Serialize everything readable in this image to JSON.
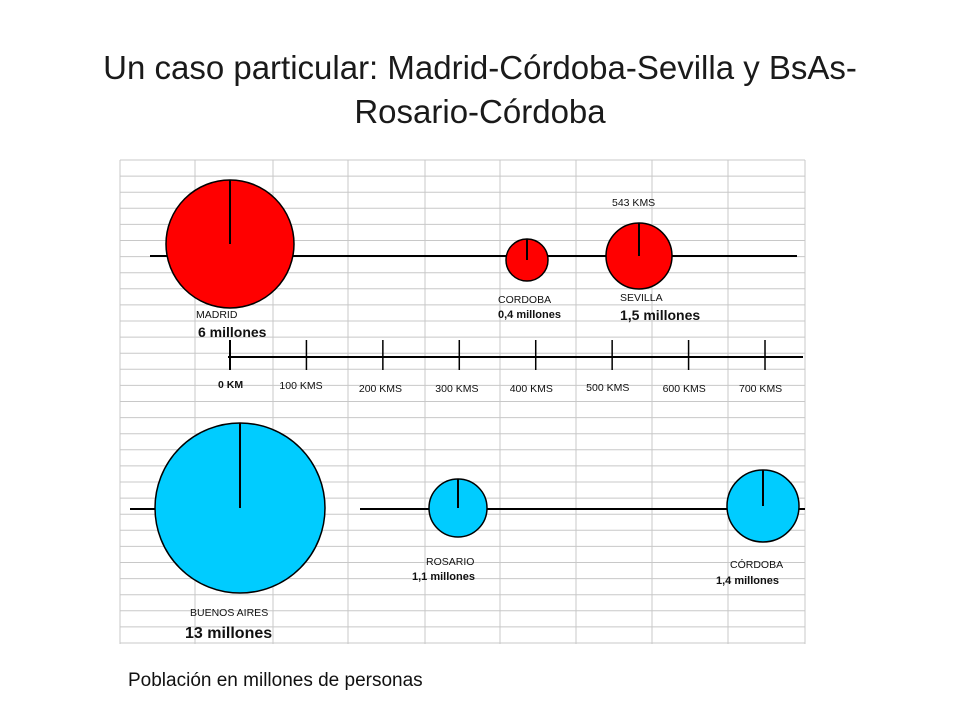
{
  "title": "Un caso particular:  Madrid-Córdoba-Sevilla  y BsAs-Rosario-Córdoba",
  "caption": "Población en millones de personas",
  "colors": {
    "spain": "#ff0000",
    "argentina": "#00ccff",
    "line": "#000000",
    "grid": "#c8c8c8"
  },
  "scale": {
    "ticks": [
      {
        "km": 0,
        "label": "0 KM"
      },
      {
        "km": 100,
        "label": "100 KMS"
      },
      {
        "km": 200,
        "label": "200 KMS"
      },
      {
        "km": 300,
        "label": "300 KMS"
      },
      {
        "km": 400,
        "label": "400 KMS"
      },
      {
        "km": 500,
        "label": "500 KMS"
      },
      {
        "km": 600,
        "label": "600 KMS"
      },
      {
        "km": 700,
        "label": "700 KMS"
      }
    ]
  },
  "spain": {
    "distance_note": "543 KMS",
    "cities": [
      {
        "name": "MADRID",
        "population_label": "6 millones",
        "population": 6.0
      },
      {
        "name": "CORDOBA",
        "population_label": "0,4 millones",
        "population": 0.4
      },
      {
        "name": "SEVILLA",
        "population_label": "1,5 millones",
        "population": 1.5
      }
    ]
  },
  "argentina": {
    "cities": [
      {
        "name": "BUENOS AIRES",
        "population_label": "13 millones",
        "population": 13.0
      },
      {
        "name": "ROSARIO",
        "population_label": "1,1 millones",
        "population": 1.1
      },
      {
        "name": "CÓRDOBA",
        "population_label": "1,4 millones",
        "population": 1.4
      }
    ]
  }
}
